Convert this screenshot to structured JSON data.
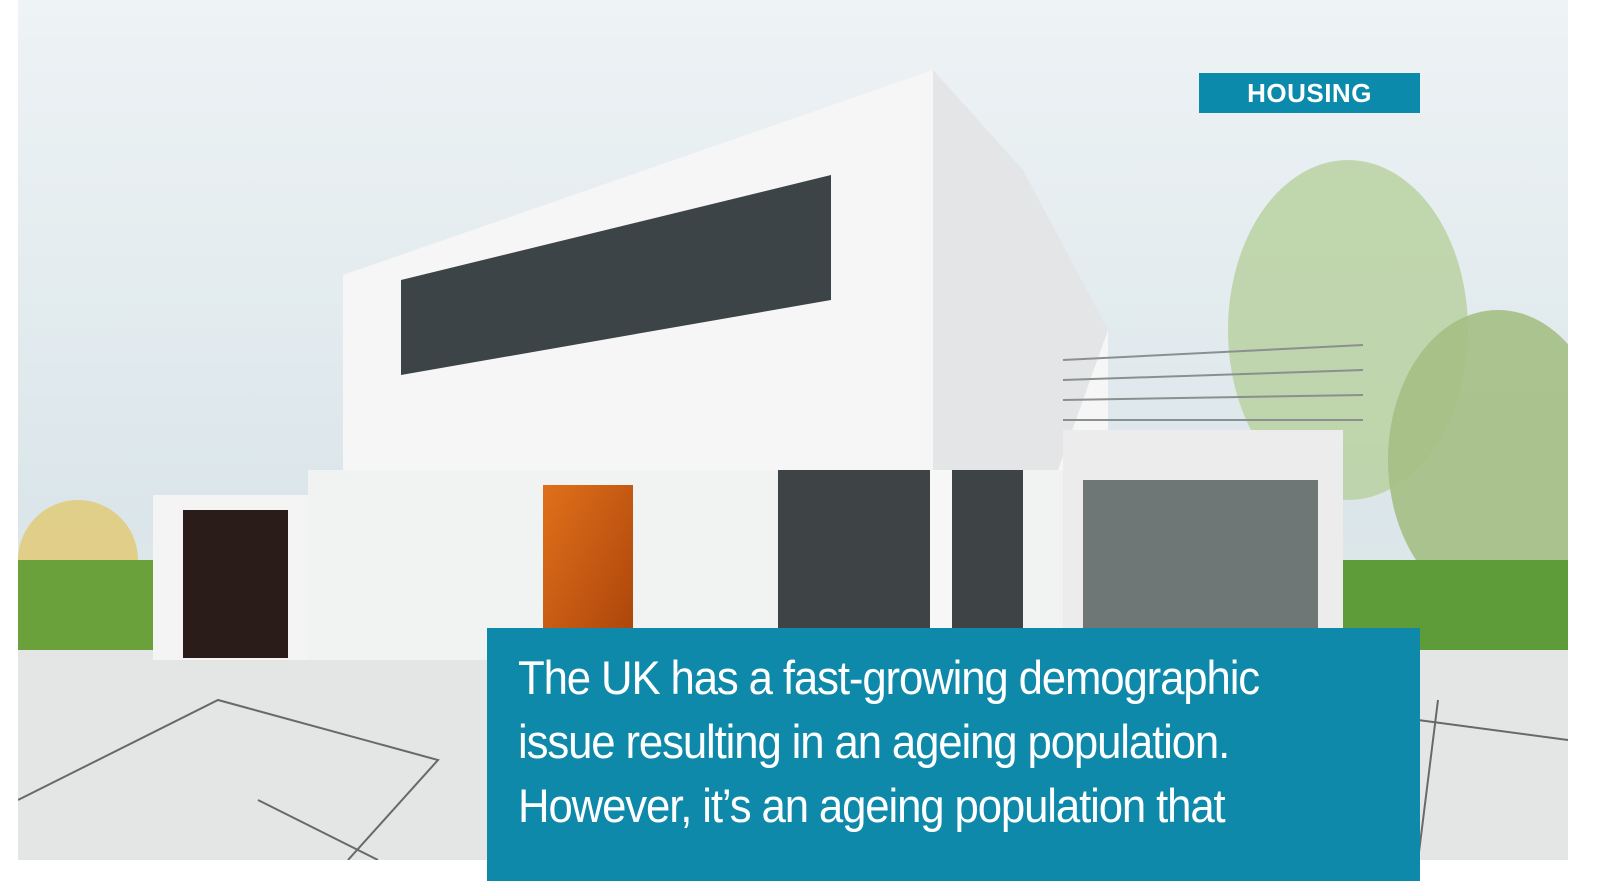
{
  "tag": "HOUSING",
  "intro": {
    "lines": [
      "The UK has a fast-growing demographic",
      "issue resulting in an ageing population.",
      "However, it’s an ageing population that"
    ]
  }
}
